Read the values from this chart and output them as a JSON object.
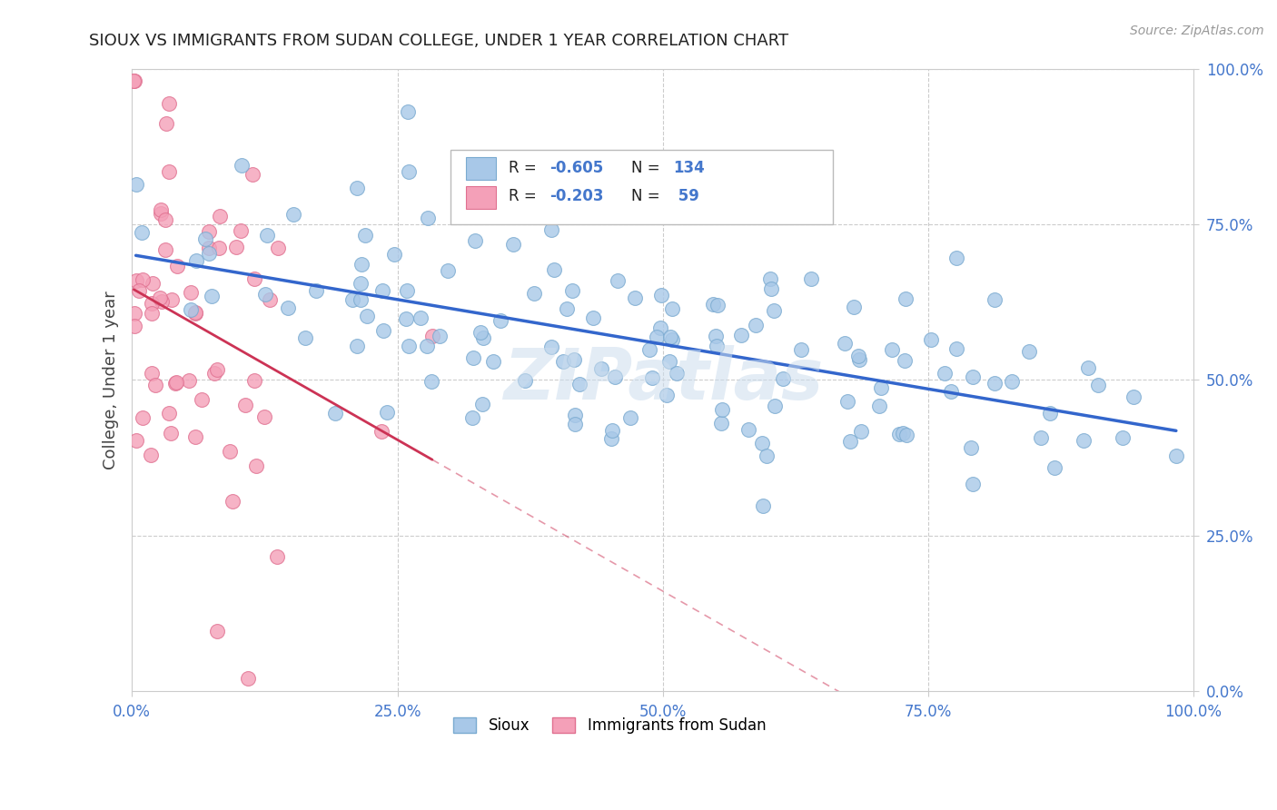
{
  "title": "SIOUX VS IMMIGRANTS FROM SUDAN COLLEGE, UNDER 1 YEAR CORRELATION CHART",
  "source": "Source: ZipAtlas.com",
  "ylabel": "College, Under 1 year",
  "xlim": [
    0.0,
    1.0
  ],
  "ylim": [
    0.0,
    1.0
  ],
  "xticks": [
    0.0,
    0.25,
    0.5,
    0.75,
    1.0
  ],
  "yticks": [
    0.0,
    0.25,
    0.5,
    0.75,
    1.0
  ],
  "xtick_labels": [
    "0.0%",
    "25.0%",
    "50.0%",
    "75.0%",
    "100.0%"
  ],
  "ytick_labels": [
    "0.0%",
    "25.0%",
    "50.0%",
    "75.0%",
    "100.0%"
  ],
  "sioux_color": "#A8C8E8",
  "sudan_color": "#F4A0B8",
  "sioux_edge": "#7AAAD0",
  "sudan_edge": "#E07090",
  "trend_blue": "#3366CC",
  "trend_pink": "#CC3355",
  "trend_pink_dashed": "#F4A0B8",
  "tick_color": "#4477CC",
  "R_sioux": -0.605,
  "N_sioux": 134,
  "R_sudan": -0.203,
  "N_sudan": 59,
  "legend_label_sioux": "Sioux",
  "legend_label_sudan": "Immigrants from Sudan",
  "watermark": "ZIPatlas",
  "background_color": "#FFFFFF",
  "grid_color": "#CCCCCC",
  "stats_box_color": "#DDDDDD"
}
